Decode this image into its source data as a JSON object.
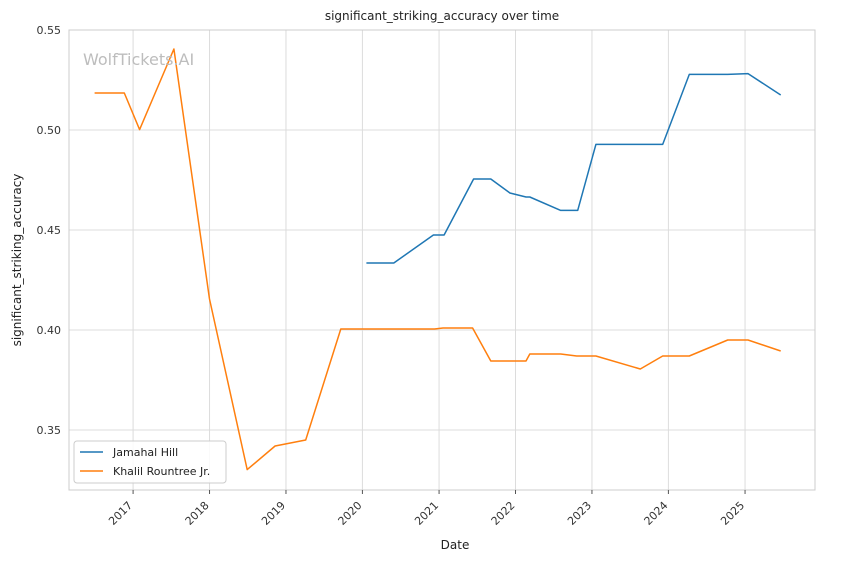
{
  "chart_data": {
    "type": "line",
    "title": "significant_striking_accuracy over time",
    "xlabel": "Date",
    "ylabel": "significant_striking_accuracy",
    "watermark": "WolfTickets.AI",
    "x_range": [
      "2016-03-01",
      "2025-12-01"
    ],
    "ylim": [
      0.32,
      0.55
    ],
    "y_ticks": [
      "0.35",
      "0.40",
      "0.45",
      "0.50",
      "0.55"
    ],
    "x_ticks": [
      "2017",
      "2018",
      "2019",
      "2020",
      "2021",
      "2022",
      "2023",
      "2024",
      "2025"
    ],
    "grid": true,
    "legend_position": "bottom-left",
    "series": [
      {
        "name": "Jamahal Hill",
        "color": "#1f77b4",
        "points": [
          [
            "2020-01-20",
            0.4335
          ],
          [
            "2020-05-30",
            0.4335
          ],
          [
            "2020-12-05",
            0.4475
          ],
          [
            "2021-01-25",
            0.4475
          ],
          [
            "2021-06-15",
            0.4755
          ],
          [
            "2021-09-05",
            0.4755
          ],
          [
            "2021-12-05",
            0.4685
          ],
          [
            "2022-02-20",
            0.4665
          ],
          [
            "2022-03-10",
            0.4665
          ],
          [
            "2022-08-05",
            0.4598
          ],
          [
            "2022-10-25",
            0.4598
          ],
          [
            "2023-01-20",
            0.4928
          ],
          [
            "2023-12-05",
            0.4928
          ],
          [
            "2024-04-10",
            0.5278
          ],
          [
            "2024-10-10",
            0.5278
          ],
          [
            "2025-01-15",
            0.5282
          ],
          [
            "2025-06-20",
            0.5175
          ]
        ]
      },
      {
        "name": "Khalil Rountree Jr.",
        "color": "#ff7f0e",
        "points": [
          [
            "2016-07-01",
            0.5185
          ],
          [
            "2016-11-20",
            0.5185
          ],
          [
            "2017-02-01",
            0.5002
          ],
          [
            "2017-07-15",
            0.5405
          ],
          [
            "2018-01-01",
            0.4155
          ],
          [
            "2018-06-30",
            0.3302
          ],
          [
            "2018-11-10",
            0.342
          ],
          [
            "2019-04-05",
            0.345
          ],
          [
            "2019-09-20",
            0.4005
          ],
          [
            "2020-12-10",
            0.4005
          ],
          [
            "2021-01-20",
            0.401
          ],
          [
            "2021-06-10",
            0.401
          ],
          [
            "2021-09-05",
            0.3845
          ],
          [
            "2022-02-20",
            0.3845
          ],
          [
            "2022-03-10",
            0.388
          ],
          [
            "2022-08-05",
            0.388
          ],
          [
            "2022-10-20",
            0.387
          ],
          [
            "2023-01-20",
            0.387
          ],
          [
            "2023-08-20",
            0.3805
          ],
          [
            "2023-12-05",
            0.387
          ],
          [
            "2024-04-10",
            0.387
          ],
          [
            "2024-10-10",
            0.395
          ],
          [
            "2025-01-15",
            0.395
          ],
          [
            "2025-06-20",
            0.3895
          ]
        ]
      }
    ]
  }
}
